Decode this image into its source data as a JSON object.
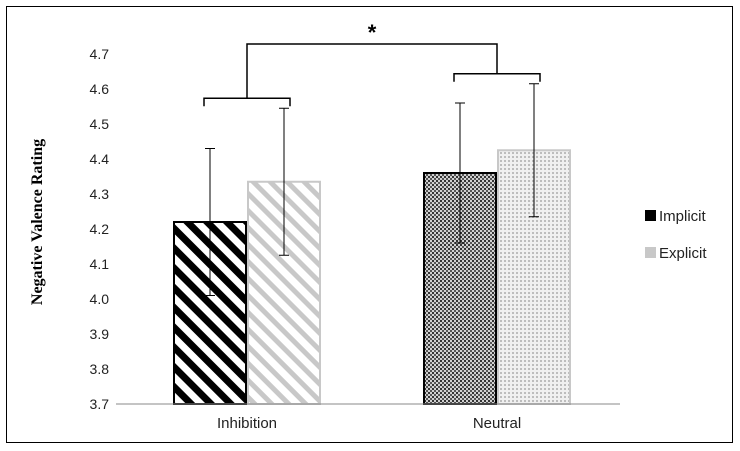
{
  "chart_data": {
    "type": "bar",
    "ylabel": "Negative Valence Rating",
    "ylim": [
      3.7,
      4.7
    ],
    "yticks": [
      "3.7",
      "3.8",
      "3.9",
      "4.0",
      "4.1",
      "4.2",
      "4.3",
      "4.4",
      "4.5",
      "4.6",
      "4.7"
    ],
    "categories": [
      "Inhibition",
      "Neutral"
    ],
    "legend_position": "right",
    "series": [
      {
        "name": "Implicit",
        "values": [
          4.22,
          4.36
        ],
        "err": [
          0.21,
          0.2
        ]
      },
      {
        "name": "Explicit",
        "values": [
          4.335,
          4.425
        ],
        "err": [
          0.21,
          0.19
        ]
      }
    ],
    "significance_marker": "*"
  },
  "colors": {
    "implicit": "#000000",
    "explicit": "#c8c8c8",
    "axis": "#555555"
  }
}
